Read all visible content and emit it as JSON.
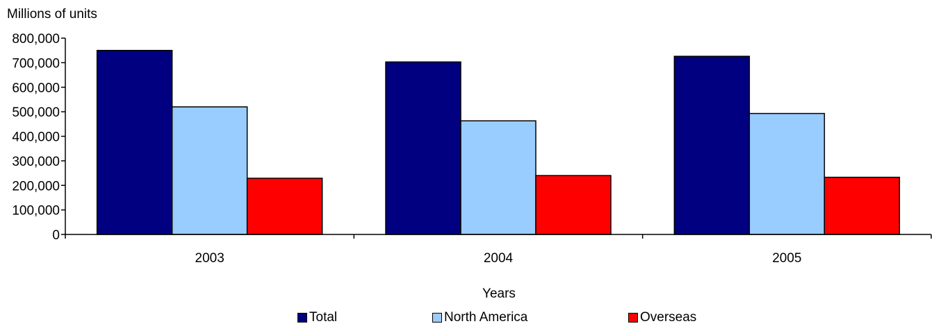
{
  "chart_data": {
    "type": "bar",
    "title": "",
    "ylabel": "Millions of units",
    "xlabel": "Years",
    "categories": [
      "2003",
      "2004",
      "2005"
    ],
    "ylim": [
      0,
      800000
    ],
    "yticks": [
      0,
      100000,
      200000,
      300000,
      400000,
      500000,
      600000,
      700000,
      800000
    ],
    "ytick_labels": [
      "0",
      "100,000",
      "200,000",
      "300,000",
      "400,000",
      "500,000",
      "600,000",
      "700,000",
      "800,000"
    ],
    "grid": false,
    "legend_position": "bottom",
    "series": [
      {
        "name": "Total",
        "color": "#000080",
        "values": [
          750000,
          703000,
          726000
        ]
      },
      {
        "name": "North America",
        "color": "#99CCFF",
        "values": [
          520000,
          463000,
          493000
        ]
      },
      {
        "name": "Overseas",
        "color": "#FF0000",
        "values": [
          229000,
          240000,
          233000
        ]
      }
    ]
  }
}
